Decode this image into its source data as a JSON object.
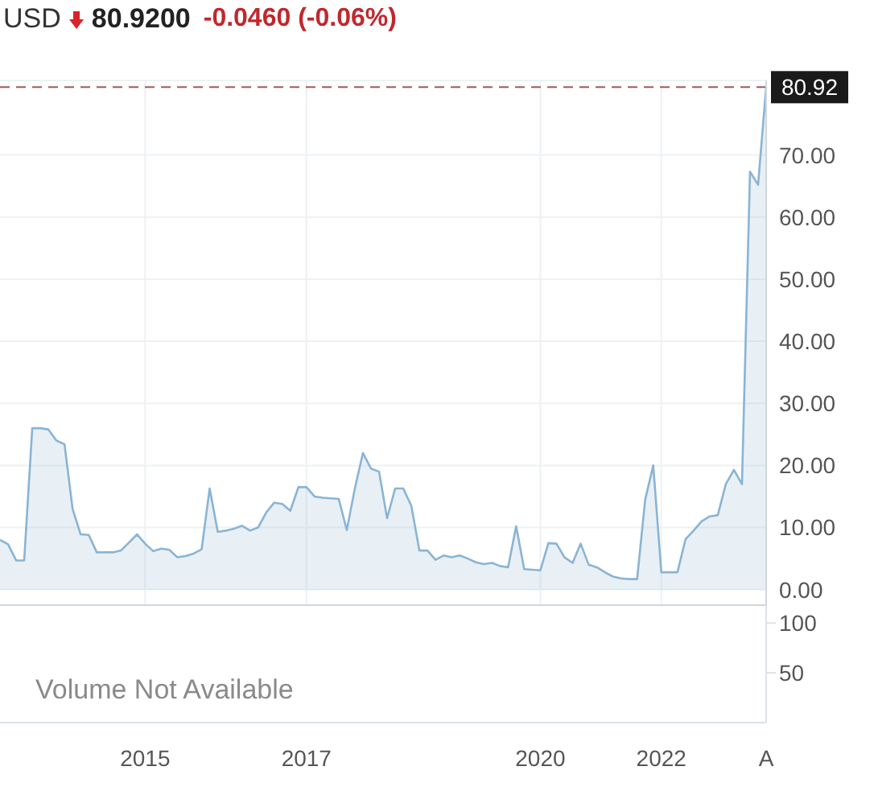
{
  "chart_data": [
    {
      "type": "area",
      "title": "USD",
      "subtitle": "80.9200",
      "annotations": [
        "-0.0460 (-0.06%)"
      ],
      "categories": [
        null,
        null,
        null,
        null,
        null,
        null,
        null,
        null,
        null,
        null,
        null,
        null,
        null,
        null,
        null,
        null,
        null,
        null,
        "2015",
        null,
        null,
        null,
        null,
        null,
        null,
        null,
        null,
        null,
        null,
        null,
        null,
        null,
        null,
        null,
        null,
        null,
        null,
        null,
        "2017",
        null,
        null,
        null,
        null,
        null,
        null,
        null,
        null,
        null,
        null,
        null,
        null,
        null,
        null,
        null,
        null,
        null,
        null,
        null,
        null,
        null,
        null,
        null,
        null,
        null,
        null,
        null,
        null,
        "2020",
        null,
        null,
        null,
        null,
        null,
        null,
        null,
        null,
        null,
        null,
        null,
        null,
        null,
        null,
        "2022",
        null,
        null,
        null,
        null,
        null,
        null,
        null,
        null,
        null,
        null,
        null,
        null,
        "A"
      ],
      "series": [
        {
          "color": "#8ab4d4",
          "values": [
            8,
            7.3,
            4.7,
            4.7,
            26,
            26,
            25.8,
            24,
            23.4,
            13,
            8.9,
            8.8,
            6,
            6,
            6,
            6.3,
            7.6,
            8.9,
            7.4,
            6.2,
            6.6,
            6.4,
            5.2,
            5.4,
            5.8,
            6.5,
            16.3,
            9.3,
            9.5,
            9.8,
            10.3,
            9.5,
            10,
            12.4,
            14,
            13.8,
            12.7,
            16.5,
            16.5,
            15,
            14.8,
            14.7,
            14.6,
            9.6,
            16.3,
            22,
            19.5,
            19,
            11.5,
            16.3,
            16.3,
            13.5,
            6.3,
            6.3,
            4.8,
            5.5,
            5.2,
            5.5,
            5,
            4.4,
            4.1,
            4.3,
            3.8,
            3.6,
            10.2,
            3.3,
            3.2,
            3.1,
            7.5,
            7.4,
            5.2,
            4.3,
            7.4,
            4,
            3.6,
            2.8,
            2.1,
            1.8,
            1.7,
            1.7,
            14.5,
            20,
            2.8,
            2.8,
            2.8,
            8.1,
            9.5,
            11,
            11.8,
            12,
            17,
            19.3,
            17,
            67.3,
            65.2,
            80.92
          ]
        }
      ],
      "ylim": [
        -2.5,
        82
      ],
      "yticks": [
        {
          "value": 0,
          "label": "0.00"
        },
        {
          "value": 10,
          "label": "10.00"
        },
        {
          "value": 20,
          "label": "20.00"
        },
        {
          "value": 30,
          "label": "30.00"
        },
        {
          "value": 40,
          "label": "40.00"
        },
        {
          "value": 50,
          "label": "50.00"
        },
        {
          "value": 60,
          "label": "60.00"
        },
        {
          "value": 70,
          "label": "70.00"
        }
      ],
      "ref_lines": [
        {
          "axis": "y",
          "value": 80.92,
          "label": "80.92",
          "color": "#a05a5a",
          "line_style": "dashed"
        }
      ],
      "grid": true
    },
    {
      "type": "bar",
      "annotations": [
        "Volume Not Available"
      ],
      "categories": [
        null,
        null,
        null,
        null,
        null,
        null,
        null,
        null,
        null,
        null,
        null,
        null,
        null,
        null,
        null,
        null,
        null,
        null,
        null,
        null,
        null,
        null,
        null,
        null,
        null,
        null,
        null,
        null,
        null,
        null,
        null,
        null,
        null,
        null,
        null,
        null,
        null,
        null,
        null,
        null,
        null,
        null,
        null,
        null,
        null,
        null,
        null,
        null,
        null,
        null,
        null,
        null,
        null,
        null,
        null,
        null,
        null,
        null,
        null,
        null,
        null,
        null,
        null,
        null,
        null,
        null,
        null,
        null,
        null,
        null,
        null,
        null,
        null,
        null,
        null,
        null,
        null,
        null,
        null,
        null,
        null,
        null,
        null,
        null,
        null,
        null,
        null,
        null,
        null,
        null,
        null,
        null,
        null,
        null,
        null,
        null
      ],
      "values": [
        null,
        null,
        null,
        null,
        null,
        null,
        null,
        null,
        null,
        null,
        null,
        null,
        null,
        null,
        null,
        null,
        null,
        null,
        null,
        null,
        null,
        null,
        null,
        null,
        null,
        null,
        null,
        null,
        null,
        null,
        null,
        null,
        null,
        null,
        null,
        null,
        null,
        null,
        null,
        null,
        null,
        null,
        null,
        null,
        null,
        null,
        null,
        null,
        null,
        null,
        null,
        null,
        null,
        null,
        null,
        null,
        null,
        null,
        null,
        null,
        null,
        null,
        null,
        null,
        null,
        null,
        null,
        null,
        null,
        null,
        null,
        null,
        null,
        null,
        null,
        null,
        null,
        null,
        null,
        null,
        null,
        null,
        null,
        null,
        null,
        null,
        null,
        null,
        null,
        null,
        null,
        null,
        null,
        null,
        null,
        null
      ],
      "ylim": [
        0,
        118
      ],
      "yticks": [
        50,
        100
      ],
      "tick_labels": "y"
    }
  ]
}
